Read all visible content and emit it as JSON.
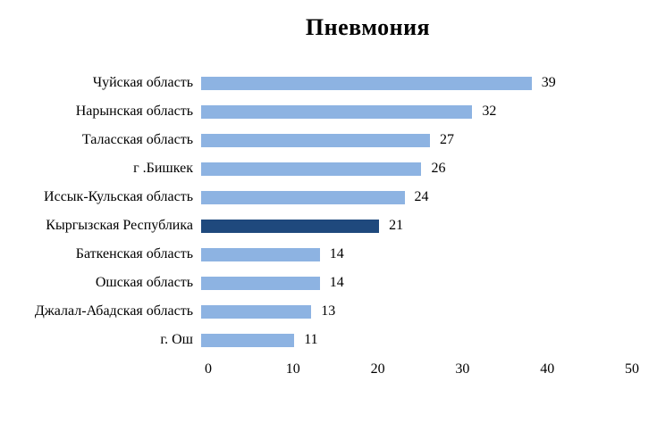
{
  "chart_data": {
    "type": "bar",
    "orientation": "horizontal",
    "title": "Пневмония",
    "categories": [
      "Чуйская область",
      "Нарынская область",
      "Таласская область",
      "г .Бишкек",
      "Иссык-Кульская область",
      "Кыргызская Республика",
      "Баткенская область",
      "Ошская область",
      "Джалал-Абадская область",
      "г. Ош"
    ],
    "values": [
      39,
      32,
      27,
      26,
      24,
      21,
      14,
      14,
      13,
      11
    ],
    "value_labels_shown": true,
    "highlight_category": "Кыргызская Республика",
    "highlight_index": 5,
    "bar_color": "#8DB3E2",
    "highlight_color": "#1F497D",
    "text_color": "#000000",
    "background_color": "#FFFFFF",
    "xlabel": "",
    "ylabel": "",
    "xlim": [
      0,
      50
    ],
    "xticks": [
      0,
      10,
      20,
      30,
      40,
      50
    ],
    "grid": false,
    "legend": false
  }
}
